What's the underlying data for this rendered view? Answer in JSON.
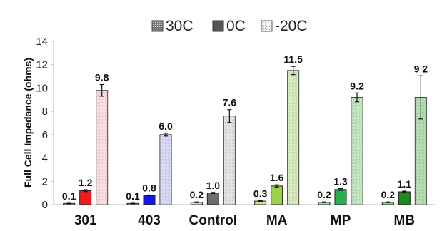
{
  "chart_data": {
    "type": "bar",
    "title": "",
    "xlabel": "",
    "ylabel": "Full Cell Impedance (ohms)",
    "ylim": [
      0,
      14
    ],
    "yticks": [
      0,
      2,
      4,
      6,
      8,
      10,
      12,
      14
    ],
    "grid": false,
    "legend_position": "top-center",
    "categories": [
      "301",
      "403",
      "Control",
      "MA",
      "MP",
      "MB"
    ],
    "series": [
      {
        "name": "30C",
        "values": [
          0.1,
          0.1,
          0.2,
          0.3,
          0.2,
          0.2
        ],
        "labels": [
          "0.1",
          "0.1",
          "0.2",
          "0.3",
          "0.2",
          "0.2"
        ],
        "errors": [
          0.02,
          0.02,
          0.03,
          0.04,
          0.03,
          0.03
        ]
      },
      {
        "name": "0C",
        "values": [
          1.2,
          0.8,
          1.0,
          1.6,
          1.3,
          1.1
        ],
        "labels": [
          "1.2",
          "0.8",
          "1.0",
          "1.6",
          "1.3",
          "1.1"
        ],
        "errors": [
          0.08,
          0.03,
          0.05,
          0.1,
          0.08,
          0.06
        ]
      },
      {
        "name": "-20C",
        "values": [
          9.8,
          6.0,
          7.6,
          11.5,
          9.2,
          9.2
        ],
        "labels": [
          "9.8",
          "6.0",
          "7.6",
          "11.5",
          "9.2",
          "9 2"
        ],
        "errors": [
          0.5,
          0.12,
          0.55,
          0.35,
          0.38,
          1.85
        ]
      }
    ],
    "bar_colors": [
      [
        "#f4cccc",
        "#ee1c1c",
        "#f8d0d0"
      ],
      [
        "#c9cdf3",
        "#1616e6",
        "#c8caf6"
      ],
      [
        "#d9d9d9",
        "#6e6e6e",
        "#d9d9d9"
      ],
      [
        "#c9e59a",
        "#9ad04a",
        "#c6e3a2"
      ],
      [
        "#a6dca8",
        "#26b04e",
        "#a8dca6"
      ],
      [
        "#8ccf8c",
        "#1e8a1e",
        "#90d08c"
      ]
    ],
    "legend_colors": [
      "#8a8a8a",
      "#555555",
      "#cfcfcf"
    ]
  }
}
